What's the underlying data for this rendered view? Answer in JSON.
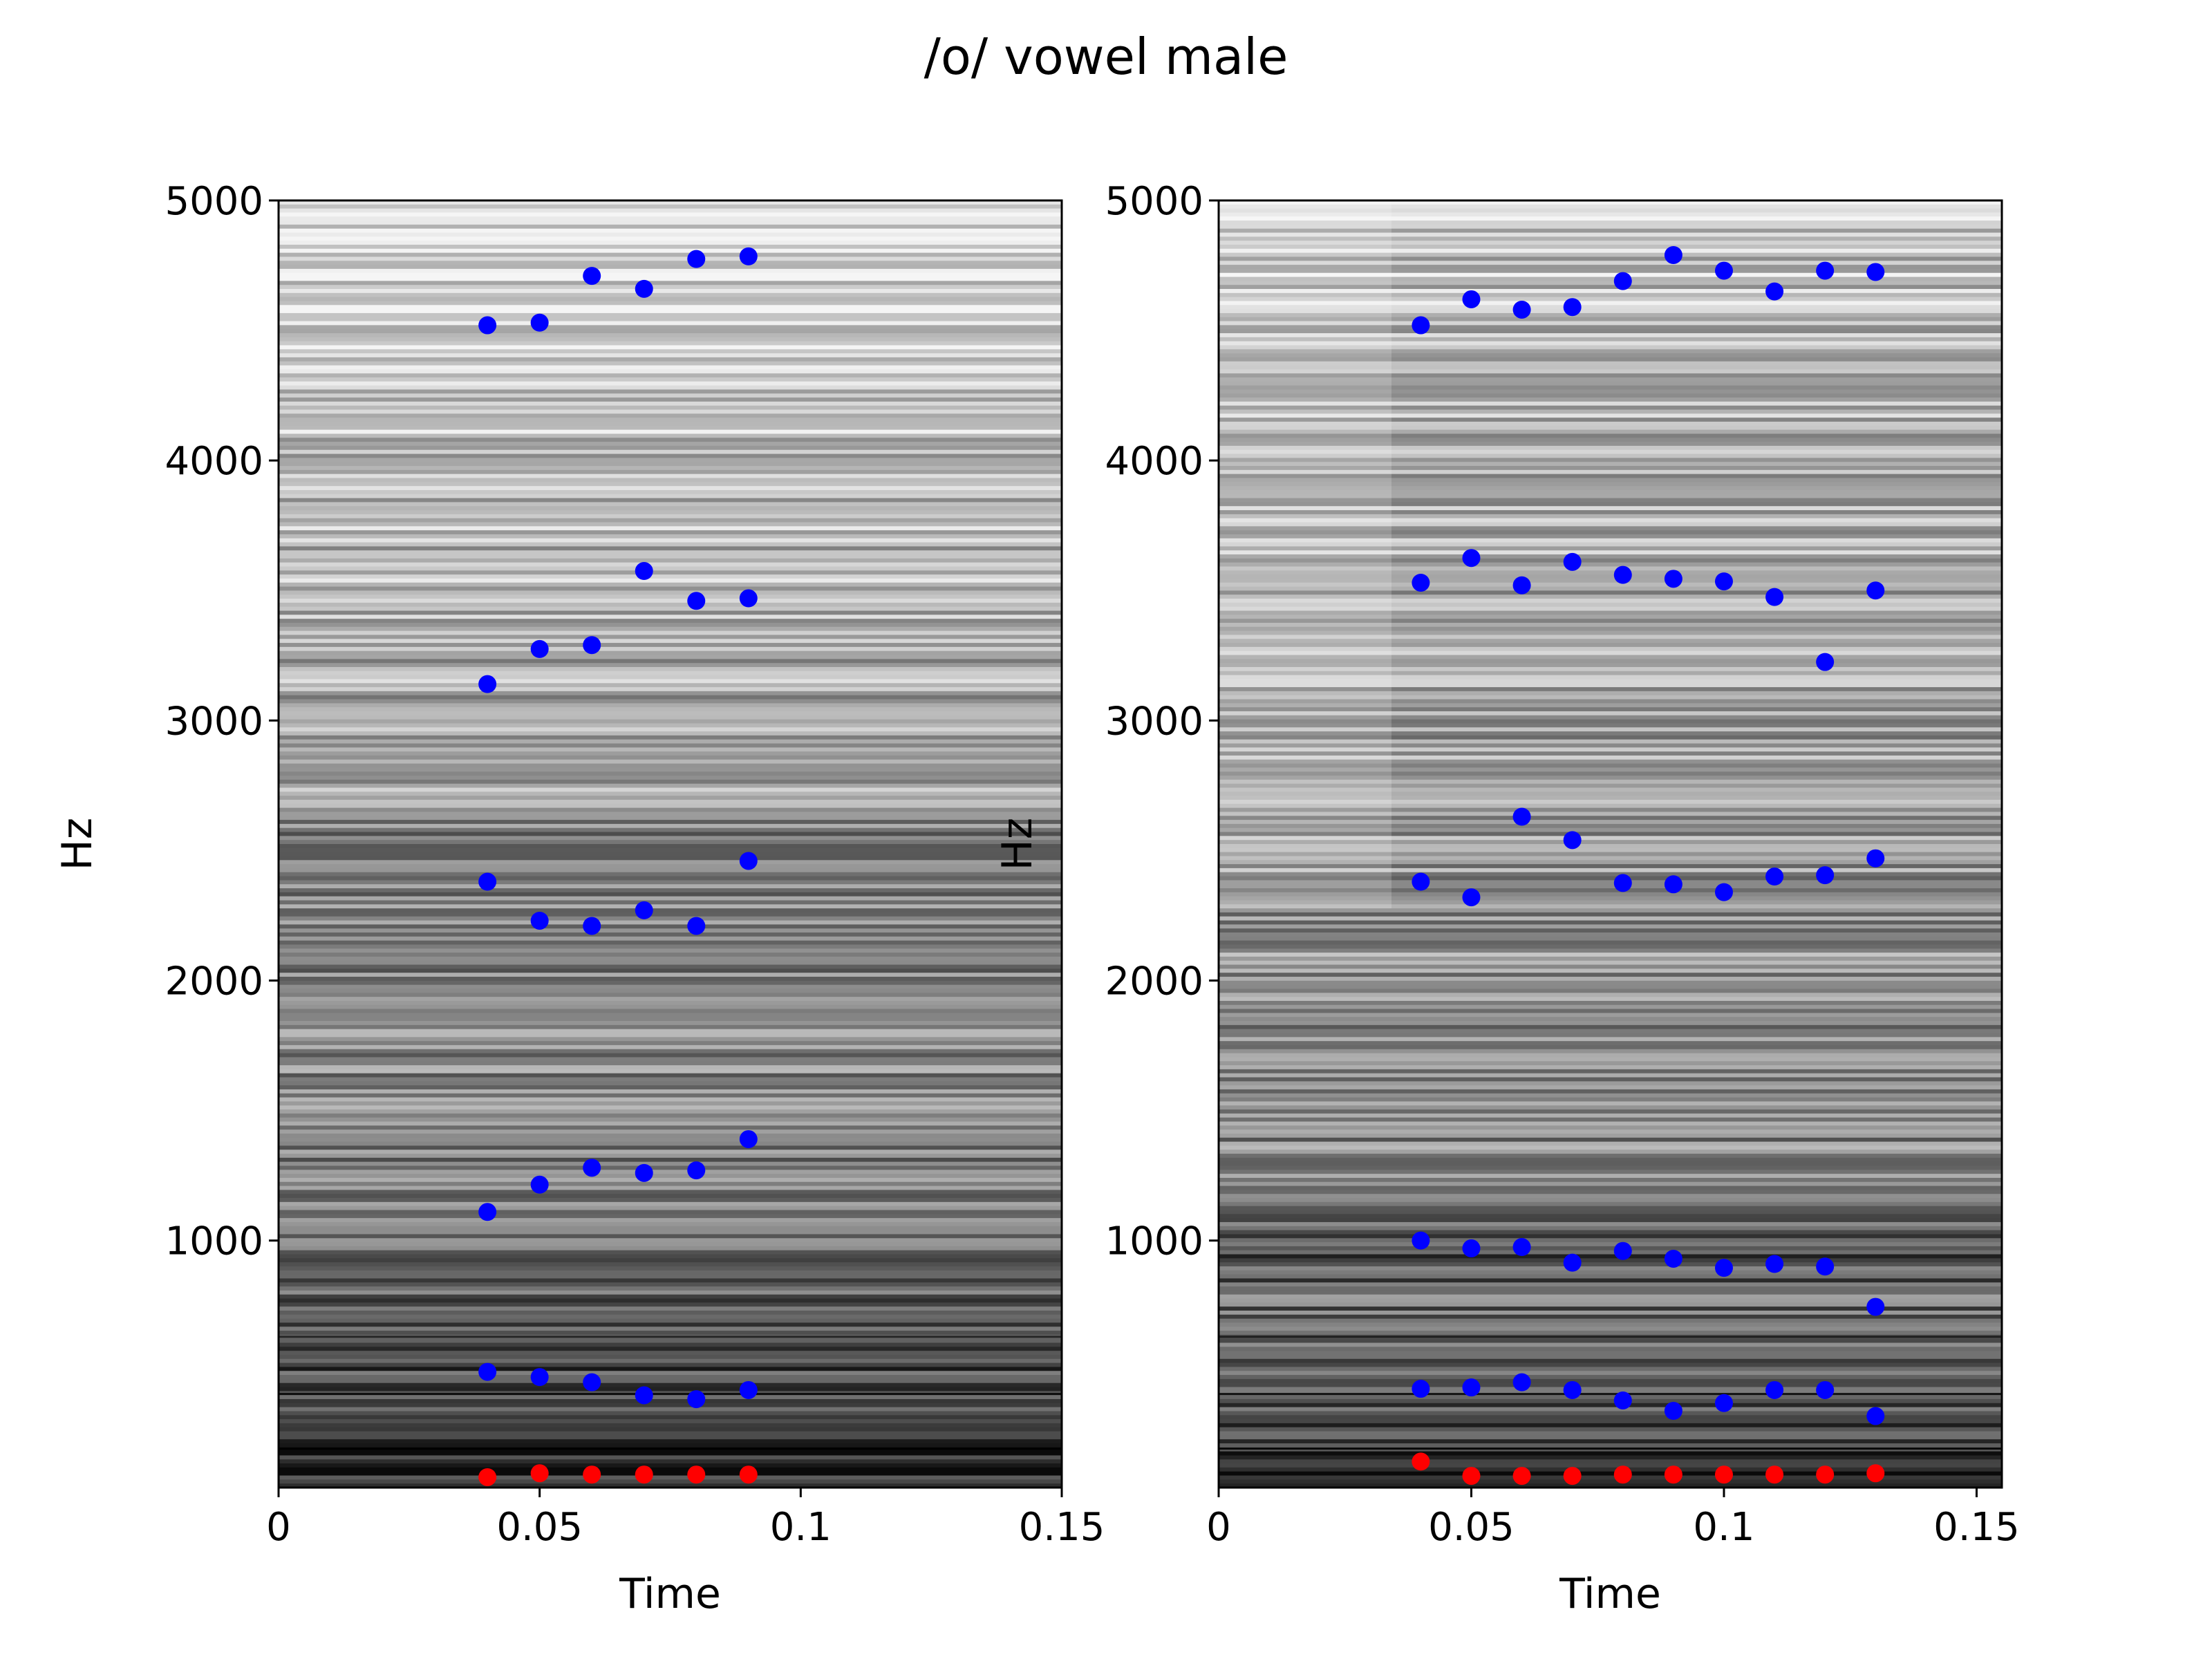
{
  "figure": {
    "title": "/o/ vowel male",
    "colors": {
      "formant": "#0000ff",
      "f0": "#ff0000",
      "axes": "#000000",
      "background": "#ffffff"
    },
    "background": "grayscale spectrogram"
  },
  "chart_data": [
    {
      "type": "scatter",
      "background": "spectrogram",
      "xlabel": "Time",
      "ylabel": "Hz",
      "xlim": [
        0,
        0.15
      ],
      "ylim": [
        50,
        5000
      ],
      "xticks": [
        "0",
        "0.05",
        "0.1",
        "0.15"
      ],
      "yticks": [
        "1000",
        "2000",
        "3000",
        "4000",
        "5000"
      ],
      "grid": false,
      "series": [
        {
          "color": "#0000ff",
          "points": [
            [
              0.04,
              4520
            ],
            [
              0.05,
              4530
            ],
            [
              0.06,
              4710
            ],
            [
              0.07,
              4660
            ],
            [
              0.08,
              4775
            ],
            [
              0.09,
              4785
            ]
          ]
        },
        {
          "color": "#0000ff",
          "points": [
            [
              0.04,
              3140
            ],
            [
              0.05,
              3275
            ],
            [
              0.06,
              3290
            ],
            [
              0.07,
              3575
            ],
            [
              0.08,
              3460
            ],
            [
              0.09,
              3470
            ]
          ]
        },
        {
          "color": "#0000ff",
          "points": [
            [
              0.04,
              2380
            ],
            [
              0.05,
              2230
            ],
            [
              0.06,
              2210
            ],
            [
              0.07,
              2270
            ],
            [
              0.08,
              2210
            ],
            [
              0.09,
              2460
            ]
          ]
        },
        {
          "color": "#0000ff",
          "points": [
            [
              0.04,
              1110
            ],
            [
              0.05,
              1215
            ],
            [
              0.06,
              1280
            ],
            [
              0.07,
              1260
            ],
            [
              0.08,
              1270
            ],
            [
              0.09,
              1390
            ]
          ]
        },
        {
          "color": "#0000ff",
          "points": [
            [
              0.04,
              495
            ],
            [
              0.05,
              475
            ],
            [
              0.06,
              455
            ],
            [
              0.07,
              405
            ],
            [
              0.08,
              390
            ],
            [
              0.09,
              425
            ]
          ]
        },
        {
          "color": "#ff0000",
          "points": [
            [
              0.04,
              90
            ],
            [
              0.05,
              105
            ],
            [
              0.06,
              100
            ],
            [
              0.07,
              100
            ],
            [
              0.08,
              100
            ],
            [
              0.09,
              100
            ]
          ]
        }
      ]
    },
    {
      "type": "scatter",
      "background": "spectrogram",
      "xlabel": "Time",
      "ylabel": "Hz",
      "xlim": [
        0,
        0.155
      ],
      "ylim": [
        50,
        5000
      ],
      "xticks": [
        "0",
        "0.05",
        "0.1",
        "0.15"
      ],
      "yticks": [
        "1000",
        "2000",
        "3000",
        "4000",
        "5000"
      ],
      "grid": false,
      "series": [
        {
          "color": "#0000ff",
          "points": [
            [
              0.04,
              4520
            ],
            [
              0.05,
              4620
            ],
            [
              0.06,
              4580
            ],
            [
              0.07,
              4590
            ],
            [
              0.08,
              4690
            ],
            [
              0.09,
              4790
            ],
            [
              0.1,
              4730
            ],
            [
              0.11,
              4650
            ],
            [
              0.12,
              4730
            ],
            [
              0.13,
              4725
            ]
          ]
        },
        {
          "color": "#0000ff",
          "points": [
            [
              0.04,
              3530
            ],
            [
              0.05,
              3625
            ],
            [
              0.06,
              3520
            ],
            [
              0.07,
              3610
            ],
            [
              0.08,
              3560
            ],
            [
              0.09,
              3545
            ],
            [
              0.1,
              3535
            ],
            [
              0.11,
              3475
            ],
            [
              0.12,
              3225
            ],
            [
              0.13,
              3500
            ]
          ]
        },
        {
          "color": "#0000ff",
          "points": [
            [
              0.04,
              2380
            ],
            [
              0.05,
              2320
            ],
            [
              0.06,
              2630
            ],
            [
              0.07,
              2540
            ],
            [
              0.08,
              2375
            ],
            [
              0.09,
              2370
            ],
            [
              0.1,
              2340
            ],
            [
              0.11,
              2400
            ],
            [
              0.12,
              2405
            ],
            [
              0.13,
              2470
            ]
          ]
        },
        {
          "color": "#0000ff",
          "points": [
            [
              0.04,
              1000
            ],
            [
              0.05,
              970
            ],
            [
              0.06,
              975
            ],
            [
              0.07,
              915
            ],
            [
              0.08,
              960
            ],
            [
              0.09,
              930
            ],
            [
              0.1,
              895
            ],
            [
              0.11,
              910
            ],
            [
              0.12,
              900
            ],
            [
              0.13,
              745
            ]
          ]
        },
        {
          "color": "#0000ff",
          "points": [
            [
              0.04,
              430
            ],
            [
              0.05,
              435
            ],
            [
              0.06,
              455
            ],
            [
              0.07,
              425
            ],
            [
              0.08,
              385
            ],
            [
              0.09,
              345
            ],
            [
              0.1,
              375
            ],
            [
              0.11,
              425
            ],
            [
              0.12,
              425
            ],
            [
              0.13,
              325
            ]
          ]
        },
        {
          "color": "#ff0000",
          "points": [
            [
              0.04,
              150
            ],
            [
              0.05,
              95
            ],
            [
              0.06,
              95
            ],
            [
              0.07,
              95
            ],
            [
              0.08,
              100
            ],
            [
              0.09,
              100
            ],
            [
              0.1,
              100
            ],
            [
              0.11,
              100
            ],
            [
              0.12,
              100
            ],
            [
              0.13,
              105
            ]
          ]
        }
      ]
    }
  ]
}
